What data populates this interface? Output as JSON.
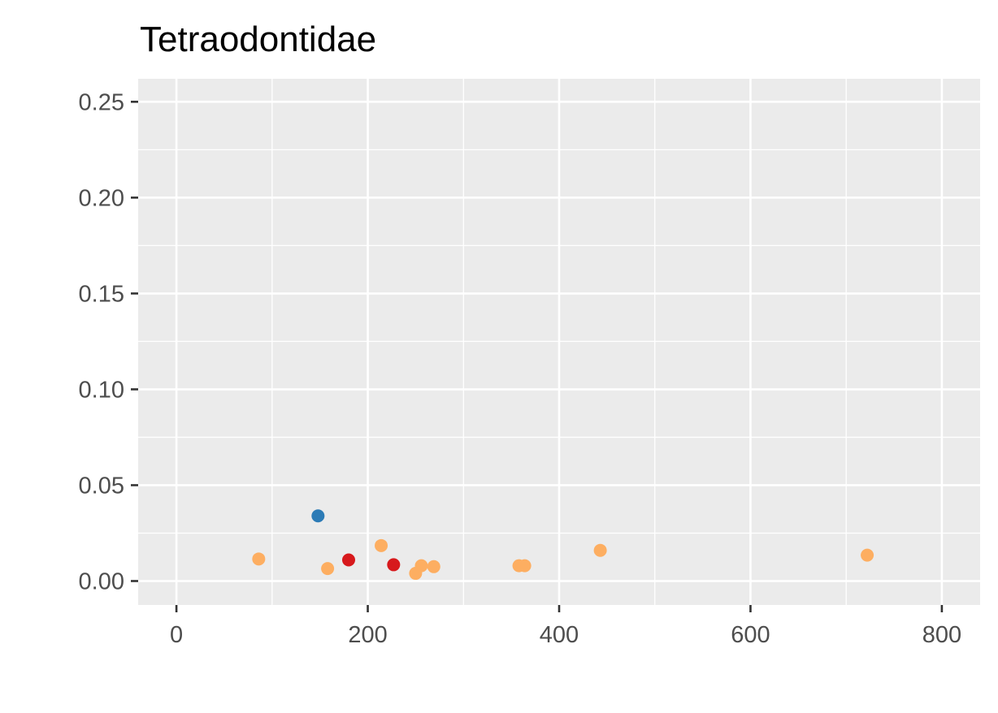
{
  "chart_data": {
    "type": "scatter",
    "title": "Tetraodontidae",
    "xlabel": "",
    "ylabel": "",
    "xlim": [
      -40,
      840
    ],
    "ylim": [
      -0.0125,
      0.262
    ],
    "x_ticks": [
      0,
      200,
      400,
      600,
      800
    ],
    "x_tick_labels": [
      "0",
      "200",
      "400",
      "600",
      "800"
    ],
    "y_ticks": [
      0.0,
      0.05,
      0.1,
      0.15,
      0.2,
      0.25
    ],
    "y_tick_labels": [
      "0.00",
      "0.05",
      "0.10",
      "0.15",
      "0.20",
      "0.25"
    ],
    "grid": true,
    "legend": "none",
    "colors": {
      "panel_background": "#ebebeb",
      "grid": "#ffffff",
      "orange": "#fdae61",
      "red": "#d7191c",
      "blue": "#2c7bb6"
    },
    "points": [
      {
        "x": 86,
        "y": 0.0115,
        "color": "#fdae61"
      },
      {
        "x": 148,
        "y": 0.034,
        "color": "#2c7bb6"
      },
      {
        "x": 158,
        "y": 0.0065,
        "color": "#fdae61"
      },
      {
        "x": 180,
        "y": 0.011,
        "color": "#d7191c"
      },
      {
        "x": 214,
        "y": 0.0185,
        "color": "#fdae61"
      },
      {
        "x": 227,
        "y": 0.0085,
        "color": "#d7191c"
      },
      {
        "x": 250,
        "y": 0.004,
        "color": "#fdae61"
      },
      {
        "x": 256,
        "y": 0.008,
        "color": "#fdae61"
      },
      {
        "x": 269,
        "y": 0.0075,
        "color": "#fdae61"
      },
      {
        "x": 358,
        "y": 0.008,
        "color": "#fdae61"
      },
      {
        "x": 364,
        "y": 0.008,
        "color": "#fdae61"
      },
      {
        "x": 443,
        "y": 0.016,
        "color": "#fdae61"
      },
      {
        "x": 722,
        "y": 0.0135,
        "color": "#fdae61"
      }
    ]
  }
}
